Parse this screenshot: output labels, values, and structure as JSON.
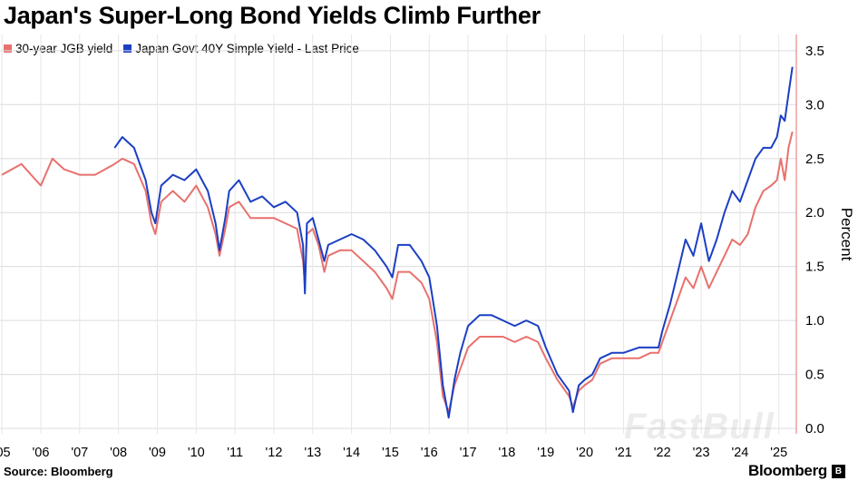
{
  "chart_data": {
    "type": "line",
    "title": "Japan's Super-Long Bond Yields Climb Further",
    "ylabel": "Percent",
    "ylim": [
      -0.05,
      3.65
    ],
    "xlim": [
      2004.95,
      2025.45
    ],
    "y_ticks": [
      0.0,
      0.5,
      1.0,
      1.5,
      2.0,
      2.5,
      3.0,
      3.5
    ],
    "y_tick_labels": [
      "0.0",
      "0.5",
      "1.0",
      "1.5",
      "2.0",
      "2.5",
      "3.0",
      "3.5"
    ],
    "x_ticks": [
      2005,
      2006,
      2007,
      2008,
      2009,
      2010,
      2011,
      2012,
      2013,
      2014,
      2015,
      2016,
      2017,
      2018,
      2019,
      2020,
      2021,
      2022,
      2023,
      2024,
      2025
    ],
    "x_tick_labels": [
      "'05",
      "'06",
      "'07",
      "'08",
      "'09",
      "'10",
      "'11",
      "'12",
      "'13",
      "'14",
      "'15",
      "'16",
      "'17",
      "'18",
      "'19",
      "'20",
      "'21",
      "'22",
      "'23",
      "'24",
      "'25"
    ],
    "grid": true,
    "legend_position": "top-left",
    "series": [
      {
        "name": "30-year JGB yield",
        "color": "#e8716d",
        "x": [
          2005.0,
          2005.5,
          2006.0,
          2006.3,
          2006.6,
          2007.0,
          2007.4,
          2007.9,
          2008.1,
          2008.4,
          2008.7,
          2008.85,
          2008.95,
          2009.1,
          2009.4,
          2009.7,
          2010.0,
          2010.3,
          2010.5,
          2010.6,
          2010.75,
          2010.85,
          2011.1,
          2011.4,
          2011.7,
          2012.0,
          2012.3,
          2012.6,
          2012.75,
          2012.8,
          2012.85,
          2013.0,
          2013.15,
          2013.3,
          2013.4,
          2013.7,
          2014.0,
          2014.3,
          2014.6,
          2014.9,
          2015.05,
          2015.2,
          2015.5,
          2015.8,
          2016.0,
          2016.2,
          2016.35,
          2016.5,
          2016.65,
          2016.8,
          2017.0,
          2017.3,
          2017.6,
          2017.9,
          2018.2,
          2018.5,
          2018.8,
          2019.0,
          2019.3,
          2019.6,
          2019.7,
          2019.85,
          2020.0,
          2020.2,
          2020.4,
          2020.7,
          2021.0,
          2021.4,
          2021.7,
          2021.9,
          2022.0,
          2022.2,
          2022.4,
          2022.6,
          2022.8,
          2023.0,
          2023.2,
          2023.4,
          2023.6,
          2023.8,
          2024.0,
          2024.2,
          2024.4,
          2024.6,
          2024.8,
          2024.95,
          2025.05,
          2025.15,
          2025.25,
          2025.35
        ],
        "values": [
          2.35,
          2.45,
          2.25,
          2.5,
          2.4,
          2.35,
          2.35,
          2.45,
          2.5,
          2.45,
          2.2,
          1.9,
          1.8,
          2.1,
          2.2,
          2.1,
          2.25,
          2.05,
          1.8,
          1.6,
          1.85,
          2.05,
          2.1,
          1.95,
          1.95,
          1.95,
          1.9,
          1.85,
          1.55,
          1.35,
          1.8,
          1.85,
          1.7,
          1.45,
          1.6,
          1.65,
          1.65,
          1.55,
          1.45,
          1.3,
          1.2,
          1.45,
          1.45,
          1.35,
          1.2,
          0.8,
          0.3,
          0.15,
          0.4,
          0.55,
          0.75,
          0.85,
          0.85,
          0.85,
          0.8,
          0.85,
          0.8,
          0.65,
          0.45,
          0.3,
          0.2,
          0.35,
          0.4,
          0.45,
          0.6,
          0.65,
          0.65,
          0.65,
          0.7,
          0.7,
          0.8,
          1.0,
          1.2,
          1.4,
          1.3,
          1.5,
          1.3,
          1.45,
          1.6,
          1.75,
          1.7,
          1.8,
          2.05,
          2.2,
          2.25,
          2.3,
          2.5,
          2.3,
          2.6,
          2.75
        ]
      },
      {
        "name": "Japan Govt 40Y Simple Yield - Last Price",
        "color": "#1b3fc4",
        "x": [
          2007.9,
          2008.1,
          2008.4,
          2008.7,
          2008.85,
          2008.95,
          2009.1,
          2009.4,
          2009.7,
          2010.0,
          2010.3,
          2010.5,
          2010.6,
          2010.75,
          2010.85,
          2011.1,
          2011.4,
          2011.7,
          2012.0,
          2012.3,
          2012.6,
          2012.75,
          2012.8,
          2012.85,
          2013.0,
          2013.15,
          2013.3,
          2013.4,
          2013.7,
          2014.0,
          2014.3,
          2014.6,
          2014.9,
          2015.05,
          2015.2,
          2015.5,
          2015.8,
          2016.0,
          2016.2,
          2016.35,
          2016.5,
          2016.65,
          2016.8,
          2017.0,
          2017.3,
          2017.6,
          2017.9,
          2018.2,
          2018.5,
          2018.8,
          2019.0,
          2019.3,
          2019.6,
          2019.7,
          2019.85,
          2020.0,
          2020.2,
          2020.4,
          2020.7,
          2021.0,
          2021.4,
          2021.7,
          2021.9,
          2022.0,
          2022.2,
          2022.4,
          2022.6,
          2022.8,
          2023.0,
          2023.2,
          2023.4,
          2023.6,
          2023.8,
          2024.0,
          2024.2,
          2024.4,
          2024.6,
          2024.8,
          2024.95,
          2025.05,
          2025.15,
          2025.25,
          2025.35
        ],
        "values": [
          2.6,
          2.7,
          2.6,
          2.3,
          2.0,
          1.9,
          2.25,
          2.35,
          2.3,
          2.4,
          2.2,
          1.9,
          1.65,
          1.95,
          2.2,
          2.3,
          2.1,
          2.15,
          2.05,
          2.1,
          2.0,
          1.7,
          1.25,
          1.9,
          1.95,
          1.75,
          1.55,
          1.7,
          1.75,
          1.8,
          1.75,
          1.65,
          1.5,
          1.4,
          1.7,
          1.7,
          1.55,
          1.4,
          0.95,
          0.4,
          0.1,
          0.45,
          0.7,
          0.95,
          1.05,
          1.05,
          1.0,
          0.95,
          1.0,
          0.95,
          0.75,
          0.5,
          0.35,
          0.15,
          0.4,
          0.45,
          0.5,
          0.65,
          0.7,
          0.7,
          0.75,
          0.75,
          0.75,
          0.9,
          1.15,
          1.45,
          1.75,
          1.6,
          1.9,
          1.55,
          1.75,
          2.0,
          2.2,
          2.1,
          2.3,
          2.5,
          2.6,
          2.6,
          2.7,
          2.9,
          2.85,
          3.1,
          3.35
        ]
      }
    ]
  },
  "source": "Source: Bloomberg",
  "brand": "Bloomberg",
  "watermark": "FastBull"
}
